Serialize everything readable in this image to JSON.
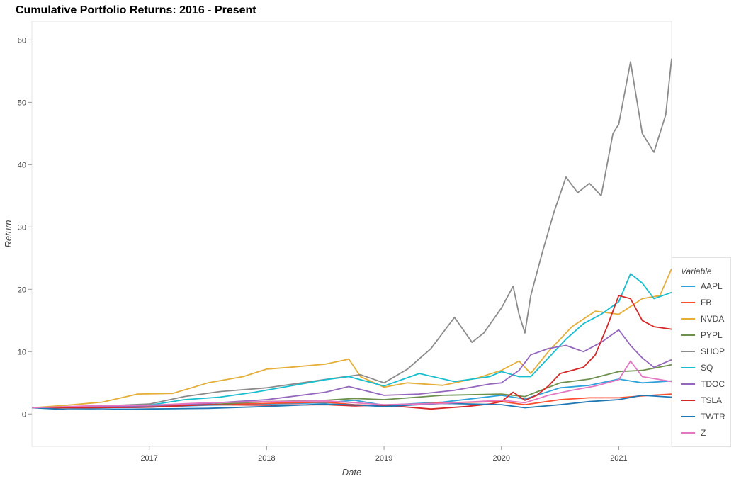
{
  "chart_data": {
    "type": "line",
    "title": "Cumulative Portfolio Returns: 2016 - Present",
    "xlabel": "Date",
    "ylabel": "Return",
    "legend_title": "Variable",
    "legend_position": "right-bottom",
    "grid": false,
    "xlim": [
      2016.0,
      2021.45
    ],
    "ylim": [
      -5.2,
      63.0
    ],
    "x_ticks": [
      "2017",
      "2018",
      "2019",
      "2020",
      "2021"
    ],
    "y_ticks": [
      0,
      10,
      20,
      30,
      40,
      50,
      60
    ],
    "series": [
      {
        "name": "AAPL",
        "color": "#30a2da",
        "x": [
          2016.0,
          2016.5,
          2017.0,
          2017.5,
          2018.0,
          2018.5,
          2018.75,
          2019.0,
          2019.5,
          2020.0,
          2020.2,
          2020.5,
          2020.75,
          2021.0,
          2021.2,
          2021.45
        ],
        "y": [
          1.0,
          0.9,
          1.1,
          1.4,
          1.6,
          1.8,
          2.2,
          1.4,
          1.9,
          3.0,
          2.4,
          4.2,
          4.6,
          5.6,
          5.0,
          5.3
        ]
      },
      {
        "name": "FB",
        "color": "#fc4f30",
        "x": [
          2016.0,
          2016.5,
          2017.0,
          2017.5,
          2018.0,
          2018.5,
          2018.75,
          2019.0,
          2019.5,
          2020.0,
          2020.2,
          2020.5,
          2020.75,
          2021.0,
          2021.2,
          2021.45
        ],
        "y": [
          1.0,
          1.1,
          1.2,
          1.5,
          1.7,
          1.9,
          1.5,
          1.3,
          1.8,
          2.0,
          1.5,
          2.3,
          2.6,
          2.6,
          2.9,
          3.2
        ]
      },
      {
        "name": "NVDA",
        "color": "#e5ae38",
        "x": [
          2016.0,
          2016.3,
          2016.6,
          2016.9,
          2017.2,
          2017.5,
          2017.8,
          2018.0,
          2018.2,
          2018.5,
          2018.7,
          2018.8,
          2019.0,
          2019.2,
          2019.5,
          2019.8,
          2020.0,
          2020.15,
          2020.25,
          2020.4,
          2020.6,
          2020.8,
          2021.0,
          2021.2,
          2021.35,
          2021.45
        ],
        "y": [
          1.0,
          1.4,
          1.9,
          3.2,
          3.3,
          5.0,
          6.0,
          7.2,
          7.5,
          8.0,
          8.8,
          6.0,
          4.3,
          5.0,
          4.6,
          5.8,
          7.0,
          8.5,
          6.5,
          10.0,
          14.0,
          16.5,
          16.0,
          18.5,
          19.0,
          23.3
        ]
      },
      {
        "name": "PYPL",
        "color": "#6d904f",
        "x": [
          2016.0,
          2016.5,
          2017.0,
          2017.5,
          2018.0,
          2018.5,
          2018.75,
          2019.0,
          2019.5,
          2020.0,
          2020.2,
          2020.5,
          2020.75,
          2021.0,
          2021.2,
          2021.45
        ],
        "y": [
          1.0,
          1.0,
          1.2,
          1.5,
          2.0,
          2.2,
          2.5,
          2.3,
          3.0,
          3.2,
          2.8,
          5.0,
          5.6,
          6.8,
          7.0,
          7.9
        ]
      },
      {
        "name": "SHOP",
        "color": "#8b8b8b",
        "x": [
          2016.0,
          2016.5,
          2017.0,
          2017.3,
          2017.6,
          2018.0,
          2018.3,
          2018.6,
          2018.8,
          2019.0,
          2019.2,
          2019.4,
          2019.6,
          2019.75,
          2019.85,
          2020.0,
          2020.1,
          2020.15,
          2020.2,
          2020.25,
          2020.35,
          2020.45,
          2020.55,
          2020.65,
          2020.75,
          2020.85,
          2020.95,
          2021.0,
          2021.1,
          2021.2,
          2021.3,
          2021.4,
          2021.45
        ],
        "y": [
          1.0,
          1.2,
          1.6,
          2.8,
          3.6,
          4.2,
          5.0,
          5.8,
          6.3,
          5.0,
          7.2,
          10.5,
          15.5,
          11.5,
          13.0,
          17.0,
          20.5,
          16.0,
          13.0,
          19.0,
          26.0,
          32.5,
          38.0,
          35.5,
          37.0,
          35.0,
          45.0,
          46.5,
          56.5,
          45.0,
          42.0,
          48.0,
          57.0
        ]
      },
      {
        "name": "SQ",
        "color": "#17becf",
        "x": [
          2016.0,
          2016.5,
          2017.0,
          2017.3,
          2017.6,
          2017.9,
          2018.2,
          2018.5,
          2018.7,
          2018.9,
          2019.0,
          2019.3,
          2019.6,
          2019.9,
          2020.0,
          2020.15,
          2020.25,
          2020.4,
          2020.55,
          2020.7,
          2020.85,
          2021.0,
          2021.1,
          2021.2,
          2021.3,
          2021.45
        ],
        "y": [
          1.0,
          1.2,
          1.4,
          2.3,
          2.7,
          3.5,
          4.5,
          5.5,
          6.0,
          5.0,
          4.5,
          6.5,
          5.2,
          6.0,
          6.8,
          6.0,
          6.0,
          9.0,
          12.0,
          14.5,
          16.0,
          18.0,
          22.5,
          21.0,
          18.5,
          19.5
        ]
      },
      {
        "name": "TDOC",
        "color": "#9467bd",
        "x": [
          2016.0,
          2016.5,
          2017.0,
          2017.5,
          2018.0,
          2018.5,
          2018.7,
          2019.0,
          2019.3,
          2019.6,
          2019.9,
          2020.0,
          2020.15,
          2020.25,
          2020.4,
          2020.55,
          2020.7,
          2020.85,
          2021.0,
          2021.1,
          2021.2,
          2021.3,
          2021.45
        ],
        "y": [
          1.0,
          1.1,
          1.3,
          1.7,
          2.3,
          3.5,
          4.4,
          3.0,
          3.2,
          3.8,
          4.8,
          5.0,
          7.0,
          9.5,
          10.5,
          11.0,
          10.0,
          11.5,
          13.5,
          11.0,
          9.0,
          7.5,
          8.7
        ]
      },
      {
        "name": "TSLA",
        "color": "#d62728",
        "x": [
          2016.0,
          2016.5,
          2017.0,
          2017.5,
          2018.0,
          2018.5,
          2018.75,
          2019.0,
          2019.4,
          2019.7,
          2019.9,
          2020.0,
          2020.1,
          2020.2,
          2020.3,
          2020.4,
          2020.5,
          2020.6,
          2020.7,
          2020.8,
          2020.9,
          2021.0,
          2021.1,
          2021.2,
          2021.3,
          2021.45
        ],
        "y": [
          1.0,
          1.0,
          1.1,
          1.5,
          1.4,
          1.5,
          1.3,
          1.4,
          0.8,
          1.2,
          1.6,
          2.0,
          3.5,
          2.2,
          3.0,
          4.5,
          6.5,
          7.0,
          7.5,
          9.5,
          14.0,
          19.0,
          18.5,
          15.0,
          14.0,
          13.6
        ]
      },
      {
        "name": "TWTR",
        "color": "#1f77b4",
        "x": [
          2016.0,
          2016.3,
          2016.6,
          2017.0,
          2017.5,
          2018.0,
          2018.5,
          2018.8,
          2019.0,
          2019.5,
          2020.0,
          2020.2,
          2020.5,
          2020.75,
          2021.0,
          2021.2,
          2021.45
        ],
        "y": [
          1.0,
          0.7,
          0.7,
          0.8,
          0.9,
          1.2,
          1.6,
          1.4,
          1.2,
          1.7,
          1.5,
          1.0,
          1.5,
          2.0,
          2.3,
          3.0,
          2.7
        ]
      },
      {
        "name": "Z",
        "color": "#e377c2",
        "x": [
          2016.0,
          2016.5,
          2017.0,
          2017.5,
          2018.0,
          2018.5,
          2018.75,
          2019.0,
          2019.5,
          2020.0,
          2020.2,
          2020.4,
          2020.6,
          2020.8,
          2021.0,
          2021.1,
          2021.2,
          2021.45
        ],
        "y": [
          1.0,
          1.3,
          1.4,
          1.8,
          2.0,
          2.1,
          1.8,
          1.5,
          1.7,
          2.2,
          1.8,
          3.0,
          3.8,
          4.5,
          5.5,
          8.5,
          6.0,
          5.2
        ]
      }
    ]
  }
}
